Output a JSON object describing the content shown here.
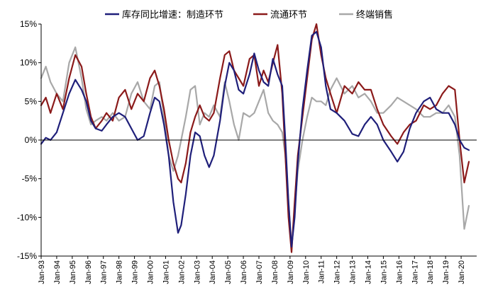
{
  "chart_data": {
    "type": "line",
    "title": "",
    "xlabel": "",
    "ylabel": "",
    "ylim": [
      -15,
      15
    ],
    "y_ticks": [
      -15,
      -10,
      -5,
      0,
      5,
      10,
      15
    ],
    "y_tick_labels": [
      "-15%",
      "-10%",
      "-5%",
      "0%",
      "5%",
      "10%",
      "15%"
    ],
    "x_range": [
      1993.0,
      2021.0
    ],
    "x_ticks": [
      1993,
      1994,
      1995,
      1996,
      1997,
      1998,
      1999,
      2000,
      2001,
      2002,
      2003,
      2004,
      2005,
      2006,
      2007,
      2008,
      2009,
      2010,
      2011,
      2012,
      2013,
      2014,
      2015,
      2016,
      2017,
      2018,
      2019,
      2020
    ],
    "x_tick_labels": [
      "Jan-93",
      "Jan-94",
      "Jan-95",
      "Jan-96",
      "Jan-97",
      "Jan-98",
      "Jan-99",
      "Jan-00",
      "Jan-01",
      "Jan-02",
      "Jan-03",
      "Jan-04",
      "Jan-05",
      "Jan-06",
      "Jan-07",
      "Jan-08",
      "Jan-09",
      "Jan-10",
      "Jan-11",
      "Jan-12",
      "Jan-13",
      "Jan-14",
      "Jan-15",
      "Jan-16",
      "Jan-17",
      "Jan-18",
      "Jan-19",
      "Jan-20"
    ],
    "legend_placement": "top",
    "grid": false,
    "series": [
      {
        "name": "库存同比增速：制造环节",
        "color": "#1f1f7a",
        "points": [
          [
            1993.0,
            -0.5
          ],
          [
            1993.3,
            0.3
          ],
          [
            1993.6,
            0.0
          ],
          [
            1994.0,
            1.0
          ],
          [
            1994.4,
            3.5
          ],
          [
            1994.8,
            6.0
          ],
          [
            1995.2,
            7.8
          ],
          [
            1995.6,
            6.5
          ],
          [
            1995.9,
            5.0
          ],
          [
            1996.2,
            2.5
          ],
          [
            1996.5,
            1.5
          ],
          [
            1996.9,
            1.2
          ],
          [
            1997.2,
            2.0
          ],
          [
            1997.6,
            3.0
          ],
          [
            1998.0,
            3.5
          ],
          [
            1998.4,
            3.0
          ],
          [
            1998.8,
            1.5
          ],
          [
            1999.2,
            0.0
          ],
          [
            1999.6,
            0.5
          ],
          [
            2000.0,
            3.5
          ],
          [
            2000.3,
            5.5
          ],
          [
            2000.6,
            5.0
          ],
          [
            2000.9,
            2.0
          ],
          [
            2001.2,
            -2.0
          ],
          [
            2001.5,
            -8.0
          ],
          [
            2001.8,
            -12.0
          ],
          [
            2002.0,
            -11.0
          ],
          [
            2002.3,
            -7.0
          ],
          [
            2002.6,
            -2.0
          ],
          [
            2002.9,
            1.0
          ],
          [
            2003.2,
            0.5
          ],
          [
            2003.5,
            -2.0
          ],
          [
            2003.8,
            -3.5
          ],
          [
            2004.1,
            -2.0
          ],
          [
            2004.5,
            2.5
          ],
          [
            2004.8,
            7.0
          ],
          [
            2005.1,
            10.0
          ],
          [
            2005.4,
            9.0
          ],
          [
            2005.7,
            6.5
          ],
          [
            2006.0,
            6.0
          ],
          [
            2006.4,
            8.5
          ],
          [
            2006.7,
            11.2
          ],
          [
            2007.0,
            9.0
          ],
          [
            2007.3,
            7.5
          ],
          [
            2007.6,
            7.0
          ],
          [
            2007.9,
            10.5
          ],
          [
            2008.2,
            8.5
          ],
          [
            2008.5,
            7.0
          ],
          [
            2008.7,
            0.0
          ],
          [
            2008.9,
            -8.0
          ],
          [
            2009.1,
            -13.8
          ],
          [
            2009.3,
            -10.0
          ],
          [
            2009.5,
            -3.0
          ],
          [
            2009.8,
            4.0
          ],
          [
            2010.1,
            9.0
          ],
          [
            2010.4,
            13.5
          ],
          [
            2010.7,
            14.0
          ],
          [
            2011.0,
            12.0
          ],
          [
            2011.3,
            7.0
          ],
          [
            2011.6,
            4.0
          ],
          [
            2012.0,
            3.5
          ],
          [
            2012.5,
            2.5
          ],
          [
            2013.0,
            0.8
          ],
          [
            2013.4,
            0.5
          ],
          [
            2013.8,
            2.0
          ],
          [
            2014.2,
            3.0
          ],
          [
            2014.6,
            2.0
          ],
          [
            2015.0,
            0.0
          ],
          [
            2015.5,
            -1.5
          ],
          [
            2015.9,
            -2.8
          ],
          [
            2016.3,
            -1.5
          ],
          [
            2016.7,
            1.5
          ],
          [
            2017.1,
            3.5
          ],
          [
            2017.6,
            5.0
          ],
          [
            2018.0,
            5.5
          ],
          [
            2018.4,
            4.0
          ],
          [
            2018.8,
            3.5
          ],
          [
            2019.2,
            3.5
          ],
          [
            2019.6,
            2.0
          ],
          [
            2019.9,
            0.0
          ],
          [
            2020.2,
            -1.0
          ],
          [
            2020.5,
            -1.3
          ]
        ]
      },
      {
        "name": "流通环节",
        "color": "#8b1a1a",
        "points": [
          [
            1993.0,
            4.5
          ],
          [
            1993.3,
            5.5
          ],
          [
            1993.6,
            3.5
          ],
          [
            1994.0,
            6.0
          ],
          [
            1994.4,
            4.0
          ],
          [
            1994.8,
            8.0
          ],
          [
            1995.2,
            11.0
          ],
          [
            1995.6,
            9.5
          ],
          [
            1995.9,
            6.0
          ],
          [
            1996.2,
            3.0
          ],
          [
            1996.5,
            1.5
          ],
          [
            1996.9,
            2.5
          ],
          [
            1997.2,
            3.5
          ],
          [
            1997.6,
            2.5
          ],
          [
            1998.0,
            5.5
          ],
          [
            1998.4,
            6.5
          ],
          [
            1998.8,
            4.0
          ],
          [
            1999.2,
            6.0
          ],
          [
            1999.6,
            5.0
          ],
          [
            2000.0,
            8.0
          ],
          [
            2000.3,
            9.0
          ],
          [
            2000.6,
            7.0
          ],
          [
            2000.9,
            4.0
          ],
          [
            2001.2,
            0.0
          ],
          [
            2001.5,
            -3.0
          ],
          [
            2001.8,
            -5.0
          ],
          [
            2002.0,
            -5.5
          ],
          [
            2002.3,
            -3.0
          ],
          [
            2002.6,
            1.0
          ],
          [
            2002.9,
            3.0
          ],
          [
            2003.2,
            4.5
          ],
          [
            2003.5,
            3.0
          ],
          [
            2003.8,
            2.5
          ],
          [
            2004.1,
            3.5
          ],
          [
            2004.5,
            8.0
          ],
          [
            2004.8,
            11.0
          ],
          [
            2005.1,
            11.5
          ],
          [
            2005.4,
            9.0
          ],
          [
            2005.7,
            8.0
          ],
          [
            2006.0,
            7.0
          ],
          [
            2006.4,
            10.5
          ],
          [
            2006.7,
            11.0
          ],
          [
            2007.0,
            7.0
          ],
          [
            2007.3,
            9.0
          ],
          [
            2007.6,
            7.5
          ],
          [
            2007.9,
            10.0
          ],
          [
            2008.2,
            12.3
          ],
          [
            2008.5,
            6.0
          ],
          [
            2008.7,
            -2.0
          ],
          [
            2008.9,
            -10.0
          ],
          [
            2009.1,
            -14.5
          ],
          [
            2009.3,
            -8.0
          ],
          [
            2009.5,
            -2.0
          ],
          [
            2009.8,
            3.0
          ],
          [
            2010.1,
            8.0
          ],
          [
            2010.4,
            13.0
          ],
          [
            2010.7,
            15.0
          ],
          [
            2011.0,
            11.0
          ],
          [
            2011.3,
            8.0
          ],
          [
            2011.6,
            6.0
          ],
          [
            2012.0,
            3.5
          ],
          [
            2012.5,
            7.0
          ],
          [
            2013.0,
            6.0
          ],
          [
            2013.4,
            7.5
          ],
          [
            2013.8,
            6.5
          ],
          [
            2014.2,
            6.5
          ],
          [
            2014.6,
            4.0
          ],
          [
            2015.0,
            2.0
          ],
          [
            2015.5,
            0.5
          ],
          [
            2015.9,
            -0.5
          ],
          [
            2016.3,
            1.0
          ],
          [
            2016.7,
            2.0
          ],
          [
            2017.1,
            2.5
          ],
          [
            2017.6,
            4.5
          ],
          [
            2018.0,
            4.0
          ],
          [
            2018.4,
            4.5
          ],
          [
            2018.8,
            6.0
          ],
          [
            2019.2,
            7.0
          ],
          [
            2019.6,
            6.5
          ],
          [
            2019.9,
            0.0
          ],
          [
            2020.2,
            -5.5
          ],
          [
            2020.5,
            -2.8
          ]
        ]
      },
      {
        "name": "终端销售",
        "color": "#a8a8a8",
        "points": [
          [
            1993.0,
            8.0
          ],
          [
            1993.3,
            9.5
          ],
          [
            1993.6,
            7.5
          ],
          [
            1994.0,
            6.0
          ],
          [
            1994.4,
            5.0
          ],
          [
            1994.8,
            10.0
          ],
          [
            1995.2,
            12.0
          ],
          [
            1995.6,
            8.0
          ],
          [
            1995.9,
            4.0
          ],
          [
            1996.2,
            2.0
          ],
          [
            1996.5,
            2.5
          ],
          [
            1996.9,
            3.0
          ],
          [
            1997.2,
            2.5
          ],
          [
            1997.6,
            3.5
          ],
          [
            1998.0,
            2.5
          ],
          [
            1998.4,
            3.0
          ],
          [
            1998.8,
            6.0
          ],
          [
            1999.2,
            7.5
          ],
          [
            1999.6,
            5.0
          ],
          [
            2000.0,
            4.0
          ],
          [
            2000.3,
            7.0
          ],
          [
            2000.6,
            7.5
          ],
          [
            2000.9,
            3.0
          ],
          [
            2001.2,
            -2.0
          ],
          [
            2001.5,
            -4.0
          ],
          [
            2001.8,
            -2.0
          ],
          [
            2002.0,
            0.0
          ],
          [
            2002.3,
            3.0
          ],
          [
            2002.6,
            6.5
          ],
          [
            2002.9,
            7.0
          ],
          [
            2003.2,
            2.0
          ],
          [
            2003.5,
            3.5
          ],
          [
            2003.8,
            3.0
          ],
          [
            2004.1,
            4.5
          ],
          [
            2004.5,
            3.0
          ],
          [
            2004.8,
            7.5
          ],
          [
            2005.1,
            5.0
          ],
          [
            2005.4,
            2.0
          ],
          [
            2005.7,
            0.0
          ],
          [
            2006.0,
            3.5
          ],
          [
            2006.4,
            3.0
          ],
          [
            2006.7,
            3.5
          ],
          [
            2007.0,
            5.0
          ],
          [
            2007.3,
            6.5
          ],
          [
            2007.6,
            3.5
          ],
          [
            2007.9,
            2.5
          ],
          [
            2008.2,
            2.0
          ],
          [
            2008.5,
            1.0
          ],
          [
            2008.7,
            -2.0
          ],
          [
            2008.9,
            -8.0
          ],
          [
            2009.1,
            -14.0
          ],
          [
            2009.3,
            -9.0
          ],
          [
            2009.5,
            -4.0
          ],
          [
            2009.8,
            0.0
          ],
          [
            2010.1,
            3.0
          ],
          [
            2010.4,
            5.5
          ],
          [
            2010.7,
            5.0
          ],
          [
            2011.0,
            5.0
          ],
          [
            2011.3,
            4.5
          ],
          [
            2011.6,
            6.5
          ],
          [
            2012.0,
            8.0
          ],
          [
            2012.5,
            6.0
          ],
          [
            2013.0,
            7.0
          ],
          [
            2013.4,
            5.5
          ],
          [
            2013.8,
            6.0
          ],
          [
            2014.2,
            5.0
          ],
          [
            2014.6,
            3.5
          ],
          [
            2015.0,
            3.5
          ],
          [
            2015.5,
            4.5
          ],
          [
            2015.9,
            5.5
          ],
          [
            2016.3,
            5.0
          ],
          [
            2016.7,
            4.5
          ],
          [
            2017.1,
            4.0
          ],
          [
            2017.6,
            3.0
          ],
          [
            2018.0,
            3.0
          ],
          [
            2018.4,
            3.5
          ],
          [
            2018.8,
            3.5
          ],
          [
            2019.2,
            4.5
          ],
          [
            2019.6,
            3.0
          ],
          [
            2019.9,
            -2.0
          ],
          [
            2020.2,
            -11.5
          ],
          [
            2020.5,
            -8.5
          ]
        ]
      }
    ]
  }
}
